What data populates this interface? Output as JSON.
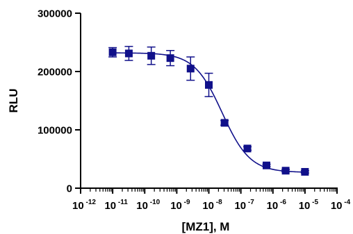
{
  "chart_data": {
    "type": "scatter",
    "title": "",
    "xlabel": "[MZ1], M",
    "ylabel": "RLU",
    "xscale": "log",
    "xlim": [
      1e-12,
      0.0001
    ],
    "ylim": [
      0,
      300000
    ],
    "y_ticks": [
      {
        "value": 0,
        "label": "0"
      },
      {
        "value": 100000,
        "label": "100000"
      },
      {
        "value": 200000,
        "label": "200000"
      },
      {
        "value": 300000,
        "label": "300000"
      }
    ],
    "x_ticks": [
      {
        "exp": -12,
        "label": "10",
        "sup": "-12"
      },
      {
        "exp": -11,
        "label": "10",
        "sup": "-11"
      },
      {
        "exp": -10,
        "label": "10",
        "sup": "-10"
      },
      {
        "exp": -9,
        "label": "10",
        "sup": "-9"
      },
      {
        "exp": -8,
        "label": "10",
        "sup": "-8"
      },
      {
        "exp": -7,
        "label": "10",
        "sup": "-7"
      },
      {
        "exp": -6,
        "label": "10",
        "sup": "-6"
      },
      {
        "exp": -5,
        "label": "10",
        "sup": "-5"
      },
      {
        "exp": -4,
        "label": "10",
        "sup": "-4"
      }
    ],
    "series": [
      {
        "marker": "square",
        "color": "#10108a",
        "points": [
          {
            "x": 1e-11,
            "y": 233000,
            "err": 8000
          },
          {
            "x": 3.2e-11,
            "y": 231000,
            "err": 12000
          },
          {
            "x": 1.6e-10,
            "y": 227000,
            "err": 15000
          },
          {
            "x": 6.3e-10,
            "y": 223000,
            "err": 13000
          },
          {
            "x": 2.7e-09,
            "y": 205000,
            "err": 20000
          },
          {
            "x": 1e-08,
            "y": 177000,
            "err": 20000
          },
          {
            "x": 3.1e-08,
            "y": 112000,
            "err": 4000
          },
          {
            "x": 1.6e-07,
            "y": 68000,
            "err": 3000
          },
          {
            "x": 6.3e-07,
            "y": 39000,
            "err": 2000
          },
          {
            "x": 2.5e-06,
            "y": 30000,
            "err": 2000
          },
          {
            "x": 1e-05,
            "y": 28000,
            "err": 2000
          }
        ],
        "fit": {
          "type": "four-parameter-logistic",
          "top": 232000,
          "bottom": 27000,
          "ic50": 2.6e-08,
          "hill": 1.0
        }
      }
    ],
    "grid": false,
    "legend": "none"
  }
}
